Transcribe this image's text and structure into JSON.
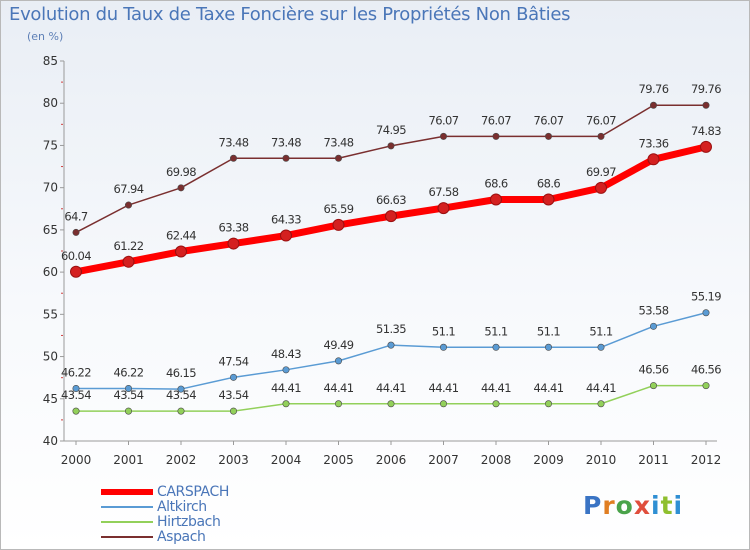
{
  "title": "Evolution du Taux de Taxe Foncière sur les Propriétés Non Bâties",
  "subtitle": "(en %)",
  "logo_text": "Proxiti",
  "chart_data": {
    "type": "line",
    "title": "Evolution du Taux de Taxe Foncière sur les Propriétés Non Bâties",
    "ylabel": "(en %)",
    "xlabel": "",
    "ylim": [
      40,
      85
    ],
    "yticks": [
      40,
      45,
      50,
      55,
      60,
      65,
      70,
      75,
      80,
      85
    ],
    "categories": [
      "2000",
      "2001",
      "2002",
      "2003",
      "2004",
      "2005",
      "2006",
      "2007",
      "2008",
      "2009",
      "2010",
      "2011",
      "2012"
    ],
    "grid": false,
    "legend_position": "bottom-left",
    "series": [
      {
        "name": "CARSPACH",
        "color": "#ff0000",
        "values": [
          60.04,
          61.22,
          62.44,
          63.38,
          64.33,
          65.59,
          66.63,
          67.58,
          68.6,
          68.6,
          69.97,
          73.36,
          74.83
        ],
        "labels": [
          "60.04",
          "61.22",
          "62.44",
          "63.38",
          "64.33",
          "65.59",
          "66.63",
          "67.58",
          "68.6",
          "68.6",
          "69.97",
          "73.36",
          "74.83"
        ]
      },
      {
        "name": "Altkirch",
        "color": "#5a9bd4",
        "values": [
          46.22,
          46.22,
          46.15,
          47.54,
          48.43,
          49.49,
          51.35,
          51.1,
          51.1,
          51.1,
          51.1,
          53.58,
          55.19
        ],
        "labels": [
          "46.22",
          "46.22",
          "46.15",
          "47.54",
          "48.43",
          "49.49",
          "51.35",
          "51.1",
          "51.1",
          "51.1",
          "51.1",
          "53.58",
          "55.19"
        ]
      },
      {
        "name": "Hirtzbach",
        "color": "#92d05a",
        "values": [
          43.54,
          43.54,
          43.54,
          43.54,
          44.41,
          44.41,
          44.41,
          44.41,
          44.41,
          44.41,
          44.41,
          46.56,
          46.56
        ],
        "labels": [
          "43.54",
          "43.54",
          "43.54",
          "43.54",
          "44.41",
          "44.41",
          "44.41",
          "44.41",
          "44.41",
          "44.41",
          "44.41",
          "46.56",
          "46.56"
        ]
      },
      {
        "name": "Aspach",
        "color": "#7a2f2f",
        "values": [
          64.7,
          67.94,
          69.98,
          73.48,
          73.48,
          73.48,
          74.95,
          76.07,
          76.07,
          76.07,
          76.07,
          79.76,
          79.76
        ],
        "labels": [
          "64.7",
          "67.94",
          "69.98",
          "73.48",
          "73.48",
          "73.48",
          "74.95",
          "76.07",
          "76.07",
          "76.07",
          "76.07",
          "79.76",
          "79.76"
        ]
      }
    ]
  }
}
